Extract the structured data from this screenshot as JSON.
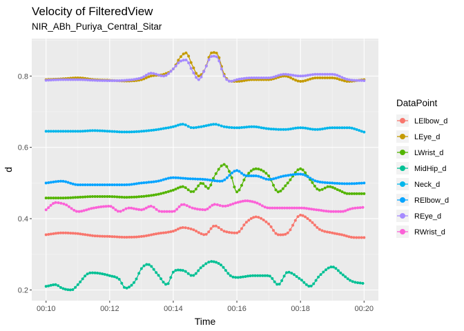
{
  "chart_data": {
    "type": "line",
    "title": "Velocity of FilteredView",
    "subtitle": "NIR_ABh_Puriya_Central_Sitar",
    "xlabel": "Time",
    "ylabel": "d",
    "x_ticks": [
      {
        "value": 10,
        "label": "00:10"
      },
      {
        "value": 12,
        "label": "00:12"
      },
      {
        "value": 14,
        "label": "00:14"
      },
      {
        "value": 16,
        "label": "00:16"
      },
      {
        "value": 18,
        "label": "00:18"
      },
      {
        "value": 20,
        "label": "00:20"
      }
    ],
    "y_ticks": [
      0.2,
      0.4,
      0.6,
      0.8
    ],
    "xlim": [
      9.55,
      20.45
    ],
    "ylim": [
      0.17,
      0.905
    ],
    "grid": true,
    "legend_position": "right",
    "legend_title": "DataPoint",
    "series": [
      {
        "name": "LElbow_d",
        "color": "#F8766D",
        "x": [
          10,
          10.5,
          11,
          11.5,
          12,
          12.5,
          13,
          13.5,
          14,
          14.3,
          14.6,
          15,
          15.3,
          15.6,
          16,
          16.3,
          16.6,
          17,
          17.3,
          17.6,
          18,
          18.3,
          18.6,
          19,
          19.3,
          19.6,
          20
        ],
        "y": [
          0.355,
          0.36,
          0.358,
          0.352,
          0.35,
          0.348,
          0.35,
          0.358,
          0.365,
          0.375,
          0.37,
          0.355,
          0.38,
          0.365,
          0.36,
          0.39,
          0.405,
          0.385,
          0.355,
          0.36,
          0.41,
          0.395,
          0.37,
          0.36,
          0.355,
          0.348,
          0.347
        ]
      },
      {
        "name": "LEye_d",
        "color": "#C49A00",
        "x": [
          10,
          10.5,
          11,
          11.5,
          12,
          12.5,
          13,
          13.3,
          13.7,
          14,
          14.2,
          14.4,
          14.6,
          14.8,
          15,
          15.2,
          15.4,
          15.6,
          15.8,
          16,
          16.5,
          17,
          17.5,
          18,
          18.5,
          19,
          19.5,
          20
        ],
        "y": [
          0.79,
          0.792,
          0.795,
          0.79,
          0.788,
          0.786,
          0.79,
          0.8,
          0.805,
          0.82,
          0.85,
          0.865,
          0.83,
          0.8,
          0.82,
          0.865,
          0.86,
          0.805,
          0.785,
          0.785,
          0.79,
          0.79,
          0.8,
          0.785,
          0.795,
          0.795,
          0.785,
          0.79
        ]
      },
      {
        "name": "LWrist_d",
        "color": "#53B400",
        "x": [
          10,
          10.5,
          11,
          11.5,
          12,
          12.5,
          13,
          13.5,
          14,
          14.3,
          14.6,
          14.9,
          15.1,
          15.3,
          15.6,
          15.8,
          16,
          16.3,
          16.6,
          17,
          17.3,
          17.6,
          18,
          18.3,
          18.6,
          18.9,
          19.2,
          19.5,
          20
        ],
        "y": [
          0.458,
          0.458,
          0.46,
          0.462,
          0.462,
          0.46,
          0.462,
          0.468,
          0.48,
          0.49,
          0.475,
          0.5,
          0.485,
          0.52,
          0.552,
          0.525,
          0.475,
          0.52,
          0.54,
          0.52,
          0.475,
          0.5,
          0.54,
          0.51,
          0.48,
          0.49,
          0.48,
          0.47,
          0.47
        ]
      },
      {
        "name": "MidHip_d",
        "color": "#00C094",
        "x": [
          10,
          10.3,
          10.5,
          10.8,
          11,
          11.3,
          11.5,
          12,
          12.3,
          12.5,
          12.8,
          13,
          13.2,
          13.5,
          13.8,
          14,
          14.3,
          14.6,
          14.9,
          15.2,
          15.5,
          15.8,
          16,
          16.5,
          17,
          17.3,
          17.6,
          18,
          18.3,
          18.6,
          19,
          19.3,
          19.6,
          20
        ],
        "y": [
          0.21,
          0.215,
          0.205,
          0.2,
          0.215,
          0.245,
          0.248,
          0.24,
          0.23,
          0.205,
          0.225,
          0.26,
          0.272,
          0.245,
          0.215,
          0.25,
          0.255,
          0.24,
          0.265,
          0.28,
          0.27,
          0.24,
          0.235,
          0.24,
          0.24,
          0.215,
          0.25,
          0.23,
          0.21,
          0.24,
          0.265,
          0.245,
          0.225,
          0.218
        ]
      },
      {
        "name": "Neck_d",
        "color": "#00B6EB",
        "x": [
          10,
          10.5,
          11,
          11.5,
          12,
          12.5,
          13,
          13.5,
          14,
          14.3,
          14.6,
          15,
          15.3,
          15.6,
          16,
          16.5,
          17,
          17.5,
          18,
          18.5,
          19,
          19.5,
          20
        ],
        "y": [
          0.645,
          0.645,
          0.645,
          0.647,
          0.645,
          0.643,
          0.645,
          0.65,
          0.658,
          0.665,
          0.655,
          0.66,
          0.665,
          0.658,
          0.655,
          0.658,
          0.652,
          0.65,
          0.655,
          0.65,
          0.655,
          0.655,
          0.643
        ]
      },
      {
        "name": "RElbow_d",
        "color": "#06A4FF",
        "x": [
          10,
          10.5,
          11,
          11.5,
          12,
          12.5,
          13,
          13.5,
          14,
          14.5,
          15,
          15.5,
          16,
          16.3,
          16.6,
          17,
          17.5,
          18,
          18.5,
          19,
          19.5,
          20
        ],
        "y": [
          0.5,
          0.505,
          0.495,
          0.495,
          0.495,
          0.495,
          0.5,
          0.505,
          0.515,
          0.512,
          0.51,
          0.505,
          0.535,
          0.52,
          0.52,
          0.51,
          0.52,
          0.525,
          0.505,
          0.5,
          0.498,
          0.5
        ]
      },
      {
        "name": "REye_d",
        "color": "#A58AFF",
        "x": [
          10,
          10.5,
          11,
          11.5,
          12,
          12.5,
          13,
          13.3,
          13.7,
          14,
          14.2,
          14.4,
          14.6,
          14.8,
          15,
          15.2,
          15.4,
          15.6,
          15.8,
          16,
          16.5,
          17,
          17.5,
          18,
          18.5,
          19,
          19.5,
          20
        ],
        "y": [
          0.788,
          0.79,
          0.79,
          0.788,
          0.787,
          0.788,
          0.795,
          0.808,
          0.8,
          0.82,
          0.84,
          0.845,
          0.815,
          0.79,
          0.82,
          0.855,
          0.85,
          0.8,
          0.785,
          0.79,
          0.795,
          0.795,
          0.805,
          0.8,
          0.805,
          0.805,
          0.79,
          0.787
        ]
      },
      {
        "name": "RWrist_d",
        "color": "#FB61D7",
        "x": [
          10,
          10.3,
          10.6,
          11,
          11.5,
          12,
          12.3,
          12.6,
          13,
          13.3,
          13.6,
          14,
          14.3,
          14.6,
          15,
          15.3,
          15.6,
          16,
          16.3,
          16.6,
          17,
          17.5,
          18,
          18.5,
          19,
          19.3,
          19.6,
          20
        ],
        "y": [
          0.425,
          0.445,
          0.44,
          0.42,
          0.43,
          0.435,
          0.42,
          0.43,
          0.425,
          0.435,
          0.42,
          0.42,
          0.44,
          0.43,
          0.425,
          0.44,
          0.435,
          0.445,
          0.45,
          0.445,
          0.43,
          0.43,
          0.43,
          0.425,
          0.42,
          0.42,
          0.428,
          0.432
        ]
      }
    ]
  }
}
